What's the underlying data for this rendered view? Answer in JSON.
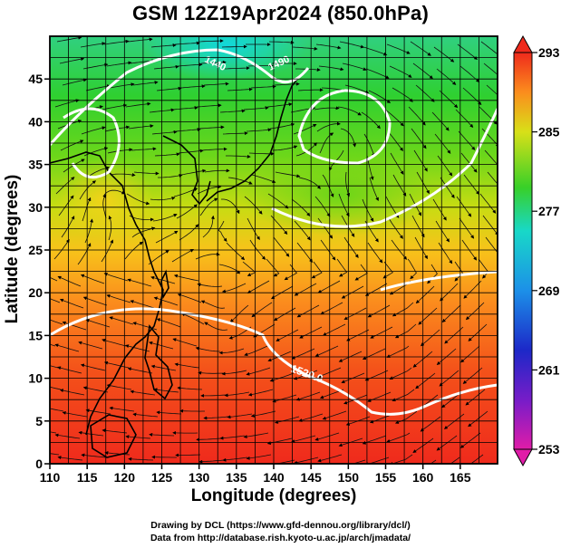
{
  "title": "GSM 12Z19Apr2024 (850.0hPa)",
  "xlabel": "Longitude (degrees)",
  "ylabel": "Latitude  (degrees)",
  "credits": [
    "Drawing by DCL (https://www.gfd-dennou.org/library/dcl/)",
    "Data from http://database.rish.kyoto-u.ac.jp/arch/jmadata/"
  ],
  "chart_data": {
    "type": "heatmap",
    "variable_colormap": "temperature (K)",
    "x_ticks": [
      110,
      115,
      120,
      125,
      130,
      135,
      140,
      145,
      150,
      155,
      160,
      165
    ],
    "y_ticks": [
      0,
      5,
      10,
      15,
      20,
      25,
      30,
      35,
      40,
      45
    ],
    "xlim": [
      110,
      170
    ],
    "ylim": [
      0,
      50
    ],
    "colorbar": {
      "labels": [
        293,
        285,
        277,
        269,
        261,
        253
      ],
      "range": [
        253,
        293
      ]
    },
    "contour_labels": [
      "1520.0",
      "1490",
      "1440"
    ],
    "grid": true
  },
  "colors": {
    "hot": "#e8261a",
    "warm": "#ff8c1a",
    "mild": "#f0e000",
    "cool": "#40d020",
    "cold": "#00c8d8",
    "contour": "#ffffff",
    "coast": "#000000"
  }
}
